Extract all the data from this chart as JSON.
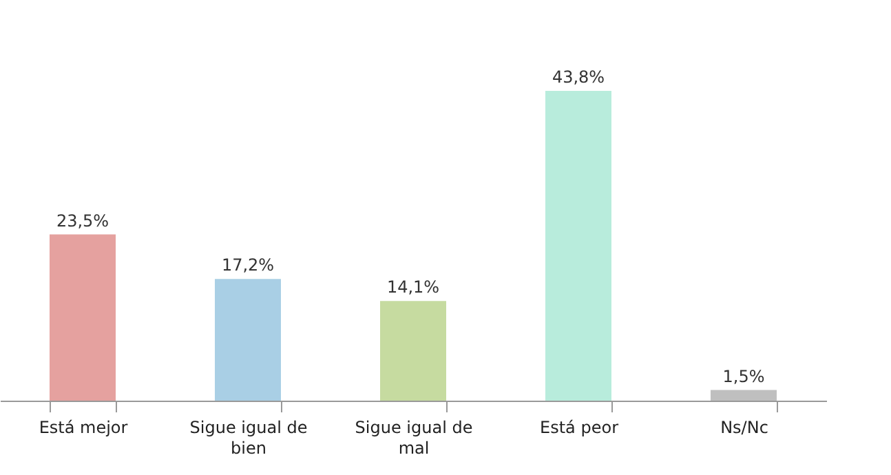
{
  "chart_data": {
    "type": "bar",
    "categories": [
      "Está mejor",
      "Sigue igual de bien",
      "Sigue igual de mal",
      "Está peor",
      "Ns/Nc"
    ],
    "values": [
      23.5,
      17.2,
      14.1,
      43.8,
      1.5
    ],
    "colors": [
      "#e5a19f",
      "#a9cfe5",
      "#c6dba0",
      "#b8ecdc",
      "#bfbfbf"
    ],
    "value_labels": [
      "23,5%",
      "17,2%",
      "14,1%",
      "43,8%",
      "1,5%"
    ],
    "grid": false
  }
}
